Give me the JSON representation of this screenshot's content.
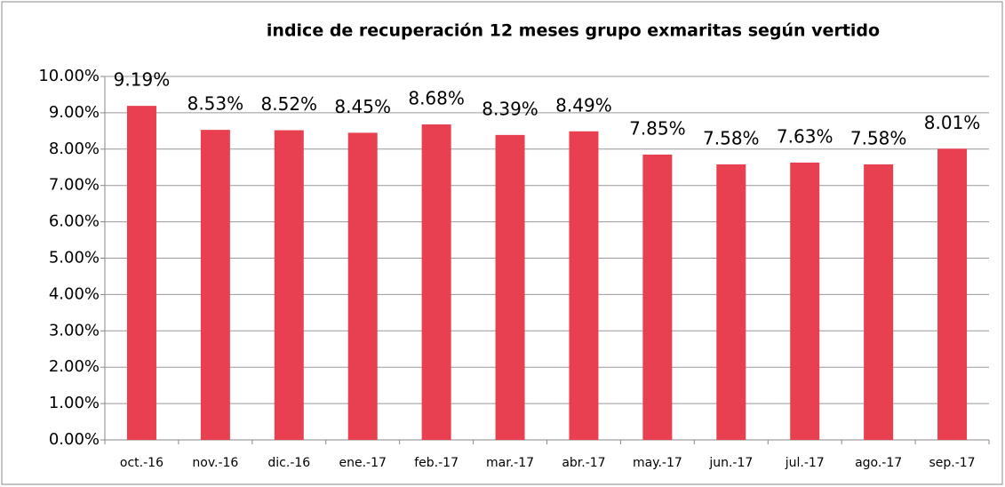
{
  "chart_data": {
    "type": "bar",
    "title": "indice de recuperación 12 meses grupo exmaritas según vertido",
    "categories": [
      "oct.-16",
      "nov.-16",
      "dic.-16",
      "ene.-17",
      "feb.-17",
      "mar.-17",
      "abr.-17",
      "may.-17",
      "jun.-17",
      "jul.-17",
      "ago.-17",
      "sep.-17"
    ],
    "values": [
      9.19,
      8.53,
      8.52,
      8.45,
      8.68,
      8.39,
      8.49,
      7.85,
      7.58,
      7.63,
      7.58,
      8.01
    ],
    "value_labels": [
      "9.19%",
      "8.53%",
      "8.52%",
      "8.45%",
      "8.68%",
      "8.39%",
      "8.49%",
      "7.85%",
      "7.58%",
      "7.63%",
      "7.58%",
      "8.01%"
    ],
    "color": "#e84050",
    "ylim": [
      0,
      10
    ],
    "yticks": [
      {
        "value": 0,
        "label": "0.00%"
      },
      {
        "value": 1,
        "label": "1.00%"
      },
      {
        "value": 2,
        "label": "2.00%"
      },
      {
        "value": 3,
        "label": "3.00%"
      },
      {
        "value": 4,
        "label": "4.00%"
      },
      {
        "value": 5,
        "label": "5.00%"
      },
      {
        "value": 6,
        "label": "6.00%"
      },
      {
        "value": 7,
        "label": "7.00%"
      },
      {
        "value": 8,
        "label": "8.00%"
      },
      {
        "value": 9,
        "label": "9.00%"
      },
      {
        "value": 10,
        "label": "10.00%"
      }
    ],
    "grid": true
  }
}
